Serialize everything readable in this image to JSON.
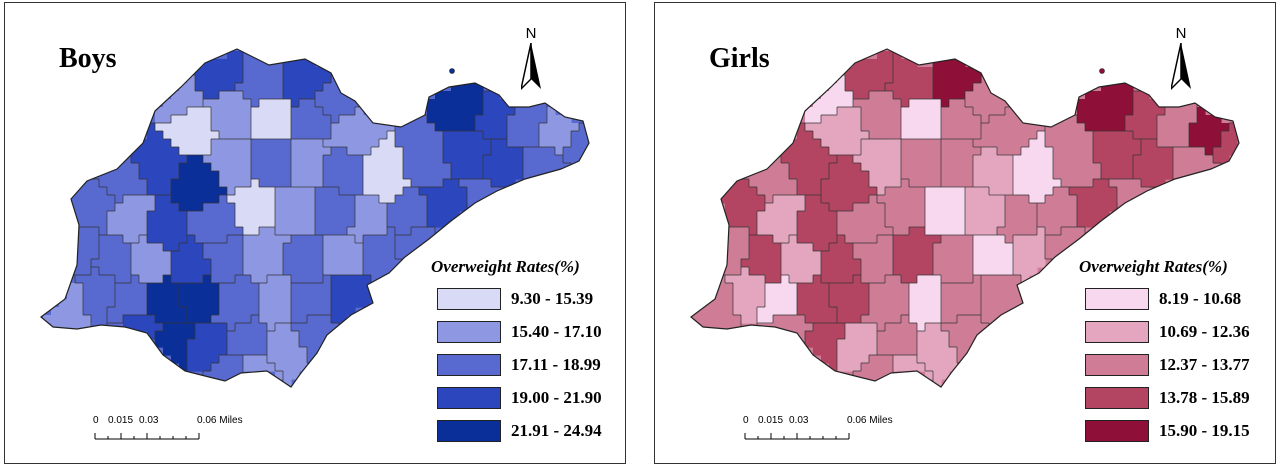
{
  "panels": [
    {
      "id": "boys",
      "title": "Boys",
      "north_label": "N",
      "legend_title": "Overweight Rates(%)",
      "legend": [
        {
          "label": "9.30 - 15.39",
          "color": "#d9daf5"
        },
        {
          "label": "15.40 - 17.10",
          "color": "#8e97e2"
        },
        {
          "label": "17.11 - 18.99",
          "color": "#5869cf"
        },
        {
          "label": "19.00 - 21.90",
          "color": "#2c46bd"
        },
        {
          "label": "21.91 - 24.94",
          "color": "#0b2f99"
        }
      ],
      "scale": {
        "labels": [
          "0",
          "0.015",
          "0.03",
          "0.06 Miles"
        ]
      }
    },
    {
      "id": "girls",
      "title": "Girls",
      "north_label": "N",
      "legend_title": "Overweight Rates(%)",
      "legend": [
        {
          "label": "8.19 - 10.68",
          "color": "#f8d8ef"
        },
        {
          "label": "10.69 - 12.36",
          "color": "#e3a6be"
        },
        {
          "label": "12.37 - 13.77",
          "color": "#cf7d97"
        },
        {
          "label": "13.78 - 15.89",
          "color": "#b34562"
        },
        {
          "label": "15.90 - 19.15",
          "color": "#8e1038"
        }
      ],
      "scale": {
        "labels": [
          "0",
          "0.015",
          "0.03",
          "0.06 Miles"
        ]
      }
    }
  ]
}
